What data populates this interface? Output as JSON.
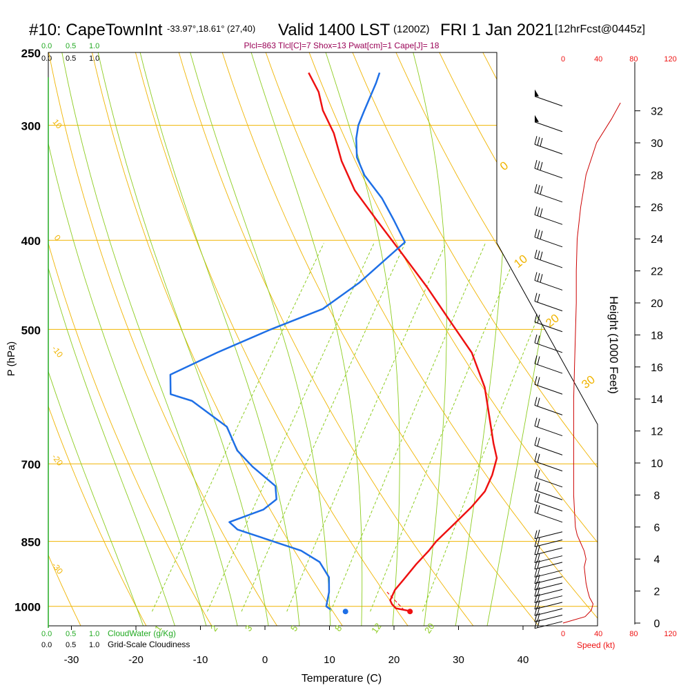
{
  "header": {
    "station": "#10: CapeTownInt",
    "coords": "-33.97°,18.61° (27,40)",
    "valid": "Valid 1400 LST",
    "zulu": "(1200Z)",
    "date": "FRI 1 Jan 2021",
    "forecast": "[12hrFcst@0445z]",
    "indices": "Plcl=863 Tlcl[C]=7 Shox=13 Pwat[cm]=1 Cape[J]= 18"
  },
  "cloud": {
    "top_scale": [
      "0.0",
      "0.5",
      "1.0"
    ],
    "bottom_water_label": "CloudWater (g/Kg)",
    "bottom_grid_label": "Grid-Scale Cloudiness"
  },
  "axes": {
    "xlabel": "Temperature (C)",
    "ylabel": "P (hPa)",
    "right_label": "Height (1000 Feet)",
    "speed_label": "Speed (kt)",
    "speed_ticks": [
      "0",
      "40",
      "80",
      "120"
    ],
    "temp_ticks": [
      "-30",
      "-20",
      "-10",
      "0",
      "10",
      "20",
      "30",
      "40"
    ],
    "pressure_ticks": [
      "250",
      "300",
      "400",
      "500",
      "700",
      "850",
      "1000"
    ],
    "height_ticks": [
      "0",
      "2",
      "4",
      "6",
      "8",
      "10",
      "12",
      "14",
      "16",
      "18",
      "20",
      "22",
      "24",
      "26",
      "28",
      "30",
      "32"
    ],
    "dry_adiabat_labels": [
      "10",
      "0",
      "-10",
      "-20",
      "-30"
    ],
    "moist_adiabat_labels": [
      "0",
      "10",
      "20",
      "30"
    ],
    "mixing_ratio_labels": [
      "1",
      "2",
      "3",
      "5",
      "8",
      "12",
      "20"
    ]
  },
  "colors": {
    "temperature": "#ee1111",
    "dewpoint": "#1e6fe6",
    "isobar": "#f0b400",
    "dry_adiabat": "#f0b400",
    "moist_adiabat": "#8ccc1e",
    "mixing_ratio": "#8ccc1e",
    "cloud_water": "#22aa22",
    "indices": "#990055"
  },
  "chart_data": {
    "type": "line",
    "title": "Skew-T sounding",
    "x_range": [
      -35,
      48
    ],
    "p_range": [
      250,
      1050
    ],
    "series": [
      {
        "name": "Temperature",
        "points": [
          [
            23.0,
            1012
          ],
          [
            20.5,
            1005
          ],
          [
            19.5,
            995
          ],
          [
            18.8,
            985
          ],
          [
            18.5,
            960
          ],
          [
            18.8,
            935
          ],
          [
            19.2,
            900
          ],
          [
            19.8,
            870
          ],
          [
            20.0,
            850
          ],
          [
            21.0,
            815
          ],
          [
            22.0,
            780
          ],
          [
            22.5,
            750
          ],
          [
            22.0,
            720
          ],
          [
            21.0,
            690
          ],
          [
            19.0,
            665
          ],
          [
            15.5,
            620
          ],
          [
            12.0,
            578
          ],
          [
            6.5,
            530
          ],
          [
            0.0,
            490
          ],
          [
            -7.0,
            450
          ],
          [
            -14.0,
            415
          ],
          [
            -21.0,
            383
          ],
          [
            -28.0,
            353
          ],
          [
            -33.0,
            328
          ],
          [
            -37.0,
            306
          ],
          [
            -41.0,
            289
          ],
          [
            -43.5,
            276
          ],
          [
            -47.0,
            263
          ]
        ]
      },
      {
        "name": "Dewpoint",
        "points": [
          [
            10.5,
            1008
          ],
          [
            9.5,
            1000
          ],
          [
            8.5,
            965
          ],
          [
            7.0,
            930
          ],
          [
            4.0,
            895
          ],
          [
            0.0,
            870
          ],
          [
            -12.0,
            825
          ],
          [
            -14.0,
            810
          ],
          [
            -10.0,
            785
          ],
          [
            -9.0,
            765
          ],
          [
            -10.5,
            740
          ],
          [
            -16.0,
            705
          ],
          [
            -20.0,
            677
          ],
          [
            -24.0,
            638
          ],
          [
            -32.0,
            598
          ],
          [
            -36.0,
            588
          ],
          [
            -38.0,
            560
          ],
          [
            -33.0,
            530
          ],
          [
            -27.0,
            500
          ],
          [
            -21.0,
            475
          ],
          [
            -18.0,
            445
          ],
          [
            -15.0,
            402
          ],
          [
            -19.0,
            380
          ],
          [
            -23.0,
            360
          ],
          [
            -28.0,
            340
          ],
          [
            -31.0,
            325
          ],
          [
            -33.0,
            310
          ],
          [
            -34.0,
            300
          ],
          [
            -34.5,
            290
          ],
          [
            -35.5,
            270
          ],
          [
            -36.0,
            263
          ]
        ]
      },
      {
        "name": "Parcel",
        "points": [
          [
            22.0,
            1010
          ],
          [
            17.5,
            965
          ]
        ]
      }
    ],
    "markers": [
      {
        "name": "Surface temperature",
        "x": 23.0,
        "p": 1013
      },
      {
        "name": "Surface dewpoint",
        "x": 13.0,
        "p": 1013
      }
    ],
    "speed_profile_kt": [
      [
        0,
        0
      ],
      [
        0.4,
        25
      ],
      [
        0.8,
        32
      ],
      [
        1.2,
        34
      ],
      [
        1.6,
        30
      ],
      [
        2.0,
        28
      ],
      [
        2.5,
        26
      ],
      [
        3.0,
        25
      ],
      [
        3.5,
        24
      ],
      [
        4.0,
        26
      ],
      [
        4.5,
        24
      ],
      [
        5.0,
        20
      ],
      [
        5.5,
        16
      ],
      [
        6.0,
        14
      ],
      [
        7.0,
        13
      ],
      [
        8.0,
        12
      ],
      [
        9.0,
        12
      ],
      [
        10.0,
        12
      ],
      [
        11.0,
        12
      ],
      [
        12.0,
        12
      ],
      [
        14.0,
        12
      ],
      [
        16.0,
        13
      ],
      [
        18.0,
        14
      ],
      [
        20.0,
        15
      ],
      [
        22.0,
        15
      ],
      [
        24.0,
        16
      ],
      [
        26.0,
        20
      ],
      [
        28.0,
        26
      ],
      [
        30.0,
        38
      ],
      [
        31.5,
        55
      ],
      [
        32.5,
        65
      ]
    ],
    "wind_barb_heights_kft": [
      32.3,
      30.7,
      29.3,
      27.8,
      26.3,
      24.9,
      23.5,
      22.2,
      20.8,
      19.5,
      18.2,
      16.9,
      15.6,
      14.3,
      13.0,
      11.7,
      10.5,
      9.5,
      8.5,
      7.7,
      7.0,
      6.3,
      5.7,
      5.2,
      4.7,
      4.2,
      3.8,
      3.3,
      2.9,
      2.5,
      2.1,
      1.7,
      1.3,
      0.9,
      0.5,
      0.1
    ]
  }
}
